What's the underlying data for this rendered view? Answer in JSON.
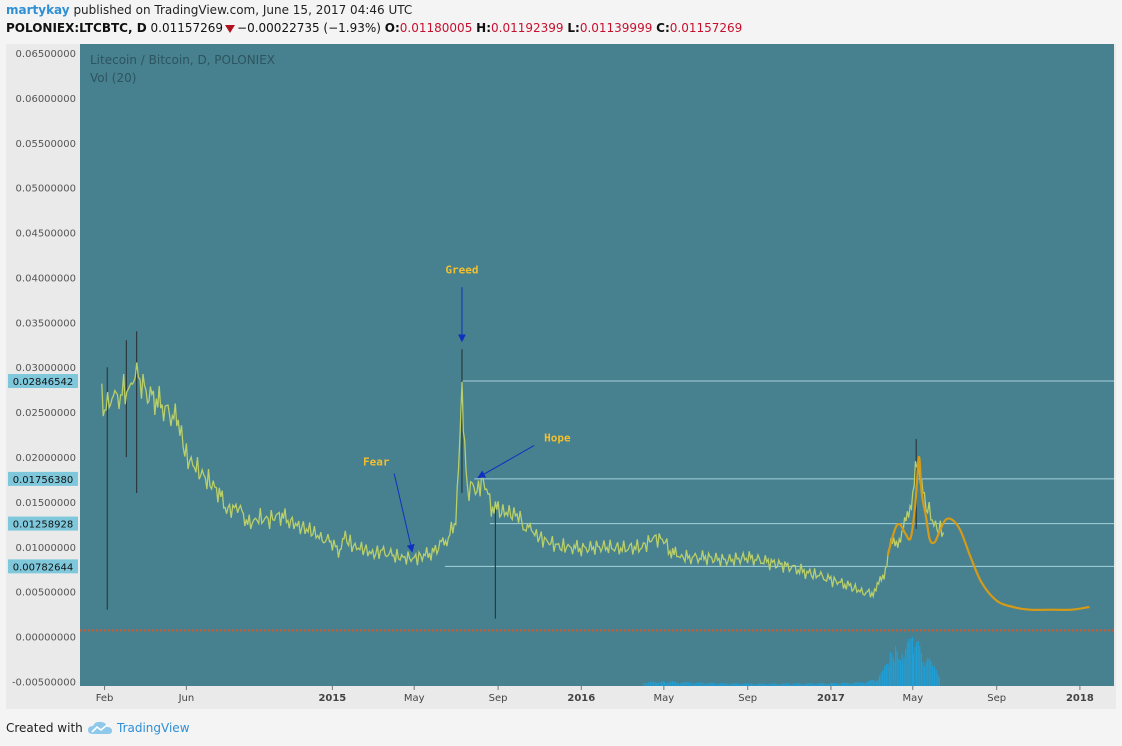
{
  "header": {
    "author": "martykay",
    "published_text": "published on TradingView.com, June 15, 2017 04:46 UTC",
    "symbol": "POLONIEX:LTCBTC, D",
    "last": "0.01157269",
    "change": "−0.00022735 (−1.93%)",
    "open_label": "O:",
    "open": "0.01180005",
    "high_label": "H:",
    "high": "0.01192399",
    "low_label": "L:",
    "low": "0.01139999",
    "close_label": "C:",
    "close": "0.01157269"
  },
  "legend": {
    "title": "Litecoin / Bitcoin, D, POLONIEX",
    "indicator": "Vol (20)"
  },
  "footer": {
    "created_with": "Created with",
    "brand": "TradingView"
  },
  "colors": {
    "plot_bg": "#47808e",
    "price_line": "#b9cf6a",
    "annotation": "#f0c030",
    "arrow": "#1030c0",
    "hline": "#a4d2dc",
    "forecast": "#d49a18",
    "volume": "#1f9fd8",
    "dotted": "#d05a2a"
  },
  "chart_data": {
    "type": "line",
    "title": "Litecoin / Bitcoin, D, POLONIEX",
    "ylim": [
      -0.0055,
      0.066
    ],
    "y_ticks": [
      "0.06500000",
      "0.06000000",
      "0.05500000",
      "0.05000000",
      "0.04500000",
      "0.04000000",
      "0.03500000",
      "0.03000000",
      "0.02500000",
      "0.02000000",
      "0.01500000",
      "0.01000000",
      "0.00500000",
      "0.00000000",
      "-0.00500000"
    ],
    "y_tick_values": [
      0.065,
      0.06,
      0.055,
      0.05,
      0.045,
      0.04,
      0.035,
      0.03,
      0.025,
      0.02,
      0.015,
      0.01,
      0.005,
      0.0,
      -0.005
    ],
    "x_ticks": [
      {
        "label": "Feb",
        "date": "2014-02-01"
      },
      {
        "label": "Jun",
        "date": "2014-06-01"
      },
      {
        "label": "2015",
        "date": "2015-01-01"
      },
      {
        "label": "May",
        "date": "2015-05-01"
      },
      {
        "label": "Sep",
        "date": "2015-09-01"
      },
      {
        "label": "2016",
        "date": "2016-01-01"
      },
      {
        "label": "May",
        "date": "2016-05-01"
      },
      {
        "label": "Sep",
        "date": "2016-09-01"
      },
      {
        "label": "2017",
        "date": "2017-01-01"
      },
      {
        "label": "May",
        "date": "2017-05-01"
      },
      {
        "label": "Sep",
        "date": "2017-09-01"
      },
      {
        "label": "2018",
        "date": "2018-01-01"
      }
    ],
    "price_series": {
      "name": "LTCBTC",
      "points": [
        [
          "2014-01-28",
          0.028
        ],
        [
          "2014-02-01",
          0.025
        ],
        [
          "2014-02-10",
          0.0268
        ],
        [
          "2014-02-20",
          0.0262
        ],
        [
          "2014-03-01",
          0.0275
        ],
        [
          "2014-03-10",
          0.0272
        ],
        [
          "2014-03-18",
          0.03
        ],
        [
          "2014-03-25",
          0.0285
        ],
        [
          "2014-04-05",
          0.027
        ],
        [
          "2014-04-20",
          0.0262
        ],
        [
          "2014-05-05",
          0.025
        ],
        [
          "2014-05-20",
          0.024
        ],
        [
          "2014-06-01",
          0.02
        ],
        [
          "2014-06-15",
          0.0188
        ],
        [
          "2014-07-01",
          0.0175
        ],
        [
          "2014-07-15",
          0.0165
        ],
        [
          "2014-08-01",
          0.014
        ],
        [
          "2014-08-15",
          0.0145
        ],
        [
          "2014-09-01",
          0.0125
        ],
        [
          "2014-09-15",
          0.0132
        ],
        [
          "2014-10-01",
          0.013
        ],
        [
          "2014-10-15",
          0.0136
        ],
        [
          "2014-11-01",
          0.0128
        ],
        [
          "2014-11-15",
          0.0122
        ],
        [
          "2014-12-01",
          0.0118
        ],
        [
          "2014-12-15",
          0.011
        ],
        [
          "2015-01-01",
          0.0105
        ],
        [
          "2015-01-10",
          0.0095
        ],
        [
          "2015-01-20",
          0.011
        ],
        [
          "2015-02-01",
          0.01
        ],
        [
          "2015-02-15",
          0.0098
        ],
        [
          "2015-03-01",
          0.0092
        ],
        [
          "2015-03-15",
          0.0095
        ],
        [
          "2015-04-01",
          0.009
        ],
        [
          "2015-04-15",
          0.0088
        ],
        [
          "2015-05-01",
          0.0087
        ],
        [
          "2015-05-15",
          0.009
        ],
        [
          "2015-06-01",
          0.0095
        ],
        [
          "2015-06-10",
          0.0105
        ],
        [
          "2015-06-20",
          0.011
        ],
        [
          "2015-07-01",
          0.013
        ],
        [
          "2015-07-05",
          0.0185
        ],
        [
          "2015-07-10",
          0.028
        ],
        [
          "2015-07-12",
          0.023
        ],
        [
          "2015-07-18",
          0.016
        ],
        [
          "2015-07-25",
          0.017
        ],
        [
          "2015-08-01",
          0.016
        ],
        [
          "2015-08-08",
          0.0175
        ],
        [
          "2015-08-15",
          0.0165
        ],
        [
          "2015-08-22",
          0.0145
        ],
        [
          "2015-09-01",
          0.014
        ],
        [
          "2015-09-15",
          0.0138
        ],
        [
          "2015-10-01",
          0.0135
        ],
        [
          "2015-10-10",
          0.012
        ],
        [
          "2015-10-20",
          0.0118
        ],
        [
          "2015-11-01",
          0.011
        ],
        [
          "2015-11-15",
          0.0105
        ],
        [
          "2015-12-01",
          0.01
        ],
        [
          "2015-12-15",
          0.01
        ],
        [
          "2016-01-01",
          0.0098
        ],
        [
          "2016-02-01",
          0.01
        ],
        [
          "2016-03-01",
          0.0098
        ],
        [
          "2016-04-01",
          0.01
        ],
        [
          "2016-04-15",
          0.011
        ],
        [
          "2016-05-01",
          0.0108
        ],
        [
          "2016-05-10",
          0.0095
        ],
        [
          "2016-05-20",
          0.009
        ],
        [
          "2016-06-01",
          0.0088
        ],
        [
          "2016-07-01",
          0.0088
        ],
        [
          "2016-08-01",
          0.0085
        ],
        [
          "2016-09-01",
          0.0088
        ],
        [
          "2016-10-01",
          0.0083
        ],
        [
          "2016-11-01",
          0.0078
        ],
        [
          "2016-12-01",
          0.007
        ],
        [
          "2016-12-15",
          0.0068
        ],
        [
          "2017-01-01",
          0.0063
        ],
        [
          "2017-01-15",
          0.006
        ],
        [
          "2017-02-01",
          0.0055
        ],
        [
          "2017-02-15",
          0.005
        ],
        [
          "2017-02-28",
          0.0048
        ],
        [
          "2017-03-10",
          0.0055
        ],
        [
          "2017-03-20",
          0.007
        ],
        [
          "2017-03-28",
          0.01
        ],
        [
          "2017-04-05",
          0.0105
        ],
        [
          "2017-04-15",
          0.0112
        ],
        [
          "2017-04-25",
          0.014
        ],
        [
          "2017-05-01",
          0.016
        ],
        [
          "2017-05-05",
          0.0185
        ],
        [
          "2017-05-08",
          0.02
        ],
        [
          "2017-05-12",
          0.0175
        ],
        [
          "2017-05-18",
          0.015
        ],
        [
          "2017-05-25",
          0.014
        ],
        [
          "2017-06-01",
          0.0125
        ],
        [
          "2017-06-08",
          0.012
        ],
        [
          "2017-06-15",
          0.0116
        ]
      ],
      "spikes": [
        [
          "2014-03-20",
          0.034,
          0.016
        ],
        [
          "2014-02-05",
          0.03,
          0.003
        ],
        [
          "2014-03-05",
          0.033,
          0.02
        ],
        [
          "2015-07-10",
          0.032,
          0.016
        ],
        [
          "2015-08-28",
          0.015,
          0.002
        ],
        [
          "2017-05-06",
          0.022,
          0.012
        ]
      ]
    },
    "horizontal_levels": [
      {
        "label": "0.02846542",
        "value": 0.02846542
      },
      {
        "label": "0.01756380",
        "value": 0.0175638
      },
      {
        "label": "0.01258928",
        "value": 0.01258928
      },
      {
        "label": "0.00782644",
        "value": 0.00782644
      }
    ],
    "forecast_series": {
      "points": [
        [
          "2017-03-25",
          0.009
        ],
        [
          "2017-04-05",
          0.012
        ],
        [
          "2017-04-12",
          0.0125
        ],
        [
          "2017-04-20",
          0.0115
        ],
        [
          "2017-04-28",
          0.011
        ],
        [
          "2017-05-05",
          0.015
        ],
        [
          "2017-05-10",
          0.02
        ],
        [
          "2017-05-14",
          0.016
        ],
        [
          "2017-05-20",
          0.0135
        ],
        [
          "2017-05-26",
          0.0108
        ],
        [
          "2017-06-02",
          0.0105
        ],
        [
          "2017-06-08",
          0.0115
        ],
        [
          "2017-06-18",
          0.013
        ],
        [
          "2017-06-28",
          0.013
        ],
        [
          "2017-07-10",
          0.0118
        ],
        [
          "2017-07-25",
          0.0088
        ],
        [
          "2017-08-10",
          0.006
        ],
        [
          "2017-09-01",
          0.004
        ],
        [
          "2017-09-25",
          0.0033
        ],
        [
          "2017-10-20",
          0.003
        ],
        [
          "2017-11-20",
          0.003
        ],
        [
          "2017-12-20",
          0.003
        ],
        [
          "2018-01-15",
          0.0033
        ]
      ]
    },
    "annotations": [
      {
        "text": "Greed",
        "date": "2015-07-10",
        "value": 0.032
      },
      {
        "text": "Hope",
        "date": "2015-07-25",
        "value": 0.0175
      },
      {
        "text": "Fear",
        "date": "2015-05-01",
        "value": 0.0088
      }
    ],
    "volume_series": {
      "name": "Vol (20)",
      "points": [
        [
          "2016-04-01",
          0.08
        ],
        [
          "2016-05-01",
          0.1
        ],
        [
          "2016-06-01",
          0.08
        ],
        [
          "2016-09-01",
          0.05
        ],
        [
          "2017-01-01",
          0.06
        ],
        [
          "2017-02-15",
          0.08
        ],
        [
          "2017-03-10",
          0.15
        ],
        [
          "2017-03-20",
          0.4
        ],
        [
          "2017-03-28",
          0.7
        ],
        [
          "2017-04-05",
          0.85
        ],
        [
          "2017-04-15",
          0.8
        ],
        [
          "2017-04-25",
          0.95
        ],
        [
          "2017-05-01",
          1.0
        ],
        [
          "2017-05-08",
          0.9
        ],
        [
          "2017-05-15",
          0.7
        ],
        [
          "2017-05-22",
          0.6
        ],
        [
          "2017-06-01",
          0.4
        ],
        [
          "2017-06-10",
          0.3
        ]
      ]
    }
  }
}
